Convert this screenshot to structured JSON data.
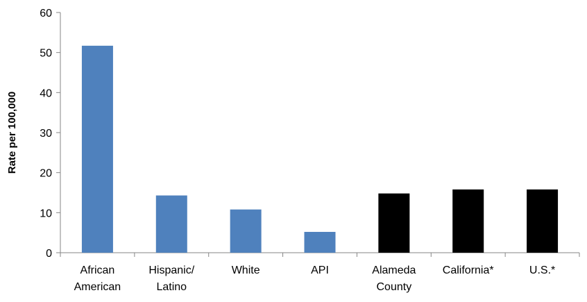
{
  "chart_data": {
    "type": "bar",
    "title": "",
    "xlabel": "",
    "ylabel": "Rate per 100,000",
    "ylim": [
      0,
      60
    ],
    "yticks": [
      "0",
      "10",
      "20",
      "30",
      "40",
      "50",
      "60"
    ],
    "grid": false,
    "categories": [
      [
        "African",
        "American"
      ],
      [
        "Hispanic/",
        "Latino"
      ],
      [
        "White"
      ],
      [
        "API"
      ],
      [
        "Alameda",
        "County"
      ],
      [
        "California*"
      ],
      [
        "U.S.*"
      ]
    ],
    "values": [
      51.7,
      14.3,
      10.8,
      5.2,
      14.8,
      15.8,
      15.8
    ],
    "bar_colors": [
      "#4f81bd",
      "#4f81bd",
      "#4f81bd",
      "#4f81bd",
      "#000000",
      "#000000",
      "#000000"
    ]
  }
}
